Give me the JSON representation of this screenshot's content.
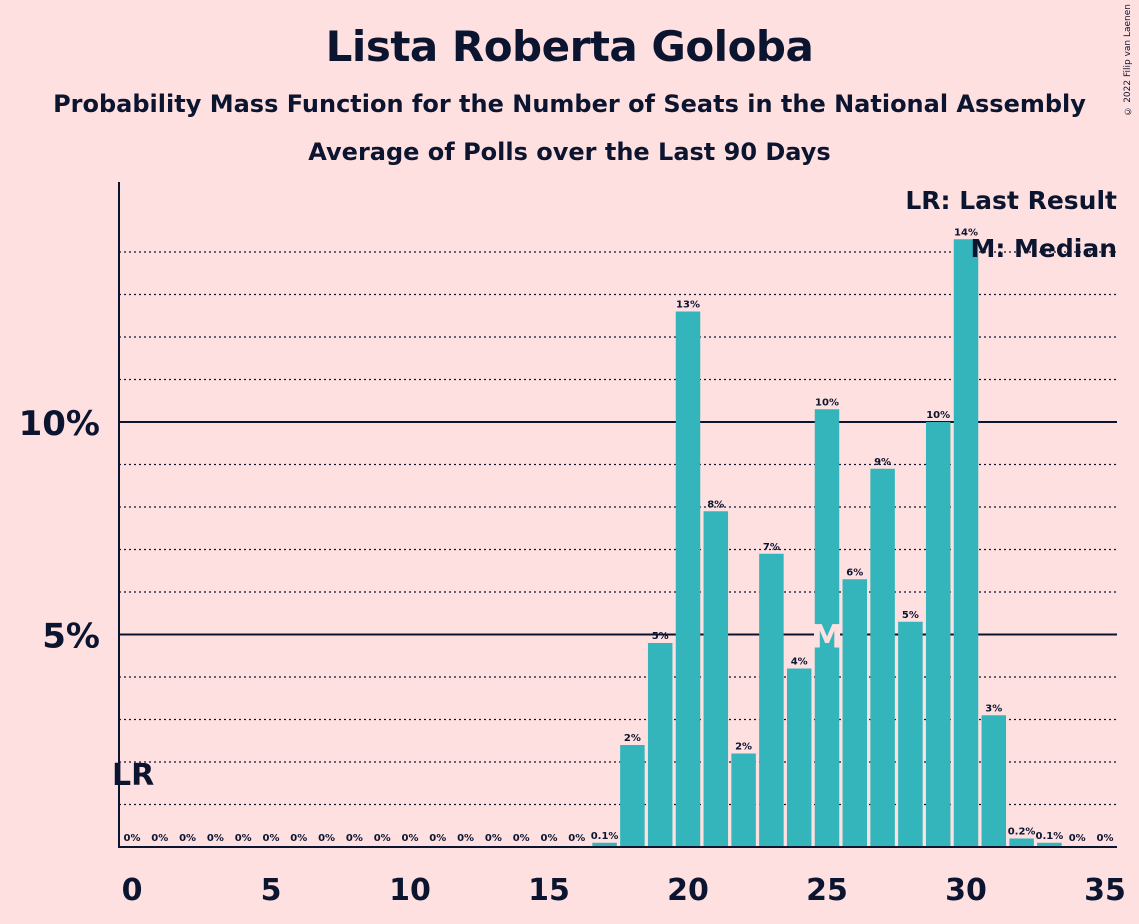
{
  "title": "Lista Roberta Goloba",
  "subtitle": "Probability Mass Function for the Number of Seats in the National Assembly",
  "subtitle2": "Average of Polls over the Last 90 Days",
  "copyright": "© 2022 Filip van Laenen",
  "chart_data": {
    "type": "bar",
    "x": [
      0,
      1,
      2,
      3,
      4,
      5,
      6,
      7,
      8,
      9,
      10,
      11,
      12,
      13,
      14,
      15,
      16,
      17,
      18,
      19,
      20,
      21,
      22,
      23,
      24,
      25,
      26,
      27,
      28,
      29,
      30,
      31,
      32,
      33,
      34,
      35
    ],
    "values": [
      0,
      0,
      0,
      0,
      0,
      0,
      0,
      0,
      0,
      0,
      0,
      0,
      0,
      0,
      0,
      0,
      0,
      0.1,
      2.4,
      4.8,
      12.6,
      7.9,
      2.2,
      6.9,
      4.2,
      10.3,
      6.3,
      8.9,
      5.3,
      10.0,
      14.3,
      3.1,
      0.2,
      0.1,
      0,
      0
    ],
    "value_labels": [
      "0%",
      "0%",
      "0%",
      "0%",
      "0%",
      "0%",
      "0%",
      "0%",
      "0%",
      "0%",
      "0%",
      "0%",
      "0%",
      "0%",
      "0%",
      "0%",
      "0%",
      "0.1%",
      "2%",
      "5%",
      "13%",
      "8%",
      "2%",
      "7%",
      "4%",
      "10%",
      "6%",
      "9%",
      "5%",
      "10%",
      "14%",
      "3%",
      "0.2%",
      "0.1%",
      "0%",
      "0%"
    ],
    "xticks": [
      0,
      5,
      10,
      15,
      20,
      25,
      30,
      35
    ],
    "xtick_labels": [
      "0",
      "5",
      "10",
      "15",
      "20",
      "25",
      "30",
      "35"
    ],
    "yticks": [
      5,
      10
    ],
    "ytick_labels": [
      "5%",
      "10%"
    ],
    "ylim": [
      0,
      15
    ],
    "minor_gridlines": [
      1,
      2,
      3,
      4,
      6,
      7,
      8,
      9,
      11,
      12,
      13,
      14
    ],
    "last_result_seat": 0,
    "median_seat": 25,
    "last_result_marker": "LR",
    "median_marker": "M",
    "legend": [
      "LR: Last Result",
      "M: Median"
    ],
    "legend_position": "top-right",
    "colors": {
      "bar": "#33b5bb",
      "background": "#ffe0e0",
      "text": "#0b1530",
      "median_marker": "#ffe0e0"
    }
  }
}
